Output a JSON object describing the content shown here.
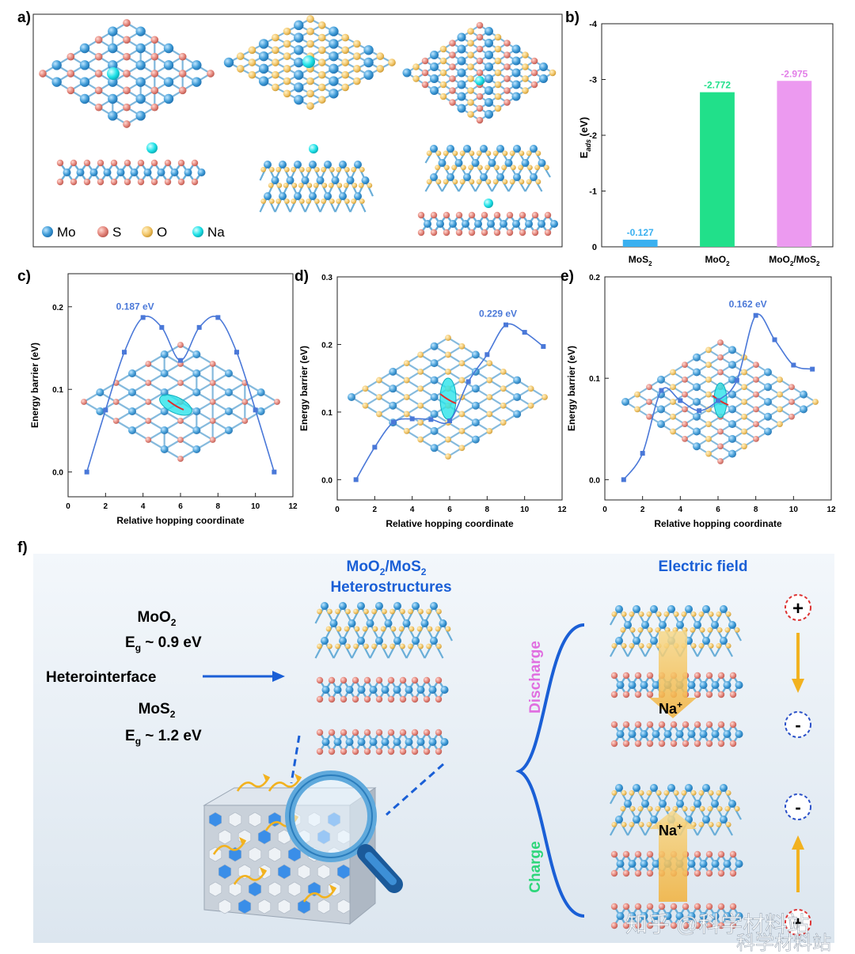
{
  "panels": {
    "a": {
      "letter": "a)",
      "legend": [
        {
          "label": "Mo",
          "color": "#4aa3d8",
          "icon": "mo-atom-icon"
        },
        {
          "label": "S",
          "color": "#e38a7e",
          "icon": "s-atom-icon"
        },
        {
          "label": "O",
          "color": "#f2c76e",
          "icon": "o-atom-icon"
        },
        {
          "label": "Na",
          "color": "#1fe6ea",
          "icon": "na-atom-icon"
        }
      ]
    },
    "b": {
      "letter": "b)"
    },
    "c": {
      "letter": "c)"
    },
    "d": {
      "letter": "d)"
    },
    "e": {
      "letter": "e)"
    },
    "f": {
      "letter": "f)",
      "moo2": "MoO",
      "moo2_sub": "2",
      "eg1_text": "E",
      "eg1_sub": "g",
      "eg1_value": " ~ 0.9 eV",
      "hetero": "Heterointerface",
      "mos2": "MoS",
      "mos2_sub": "2",
      "eg2_text": "E",
      "eg2_sub": "g",
      "eg2_value": " ~ 1.2 eV",
      "hs_title1_a": "MoO",
      "hs_title1_b": "2",
      "hs_title1_c": "/MoS",
      "hs_title1_d": "2",
      "hs_title2": "Heterostructures",
      "field_title": "Electric field",
      "discharge": "Discharge",
      "charge": "Charge",
      "na_label": "Na",
      "na_sup": "+",
      "plus": "+",
      "minus": "-",
      "watermark1": "知乎 @科学材料站",
      "watermark2": "科学材料站",
      "colors": {
        "blue": "#1a5fd6",
        "pink": "#e06ee0",
        "green": "#2ed67a",
        "arrow": "#f2b21f"
      }
    }
  },
  "chart_data": [
    {
      "id": "b",
      "type": "bar",
      "categories": [
        "MoS2",
        "MoO2",
        "MoO2/MoS2"
      ],
      "category_labels": [
        {
          "main": "MoS",
          "sub": "2",
          "tail": "",
          "sub2": ""
        },
        {
          "main": "MoO",
          "sub": "2",
          "tail": "",
          "sub2": ""
        },
        {
          "main": "MoO",
          "sub": "2",
          "tail": "/MoS",
          "sub2": "2"
        }
      ],
      "values": [
        -0.127,
        -2.772,
        -2.975
      ],
      "data_labels": [
        "-0.127",
        "-2.772",
        "-2.975"
      ],
      "colors": [
        "#3ab0f0",
        "#21e08a",
        "#ec9af0"
      ],
      "label_colors": [
        "#3ab0f0",
        "#21e08a",
        "#e27ee8"
      ],
      "ylabel_main": "E",
      "ylabel_sub": "ads",
      "ylabel_tail": " (eV)",
      "ylim": [
        0,
        -4
      ],
      "yticks": [
        0,
        -1,
        -2,
        -3,
        -4
      ],
      "ytick_labels": [
        "0",
        "-1",
        "-2",
        "-3",
        "-4"
      ],
      "y_inverted": true
    },
    {
      "id": "c",
      "type": "line",
      "x": [
        1,
        2,
        3,
        4,
        5,
        6,
        7,
        8,
        9,
        10,
        11
      ],
      "y": [
        0.0,
        0.075,
        0.145,
        0.187,
        0.175,
        0.135,
        0.175,
        0.187,
        0.145,
        0.075,
        0.0
      ],
      "annotation": "0.187 eV",
      "xlabel": "Relative hopping coordinate",
      "ylabel": "Energy barrier (eV)",
      "xlim": [
        0,
        12
      ],
      "ylim": [
        -0.03,
        0.24
      ],
      "xticks": [
        0,
        2,
        4,
        6,
        8,
        10,
        12
      ],
      "yticks": [
        0.0,
        0.1,
        0.2
      ],
      "ytick_labels": [
        "0.0",
        "0.1",
        "0.2"
      ],
      "color": "#4a78d8"
    },
    {
      "id": "d",
      "type": "line",
      "x": [
        1,
        2,
        3,
        4,
        5,
        6,
        7,
        8,
        9,
        10,
        11
      ],
      "y": [
        0.0,
        0.048,
        0.085,
        0.09,
        0.089,
        0.087,
        0.145,
        0.185,
        0.229,
        0.218,
        0.197
      ],
      "annotation": "0.229 eV",
      "xlabel": "Relative hopping coordinate",
      "ylabel": "Energy barrier (eV)",
      "xlim": [
        0,
        12
      ],
      "ylim": [
        -0.03,
        0.3
      ],
      "xticks": [
        0,
        2,
        4,
        6,
        8,
        10,
        12
      ],
      "yticks": [
        0.0,
        0.1,
        0.2,
        0.3
      ],
      "ytick_labels": [
        "0.0",
        "0.1",
        "0.2",
        "0.3"
      ],
      "color": "#4a78d8"
    },
    {
      "id": "e",
      "type": "line",
      "x": [
        1,
        2,
        3,
        4,
        5,
        6,
        7,
        8,
        9,
        10,
        11
      ],
      "y": [
        0.0,
        0.026,
        0.088,
        0.078,
        0.068,
        0.078,
        0.098,
        0.162,
        0.138,
        0.113,
        0.109
      ],
      "annotation": "0.162 eV",
      "xlabel": "Relative hopping coordinate",
      "ylabel": "Energy barrier (eV)",
      "xlim": [
        0,
        12
      ],
      "ylim": [
        -0.02,
        0.2
      ],
      "xticks": [
        0,
        2,
        4,
        6,
        8,
        10,
        12
      ],
      "yticks": [
        0.0,
        0.1,
        0.2
      ],
      "ytick_labels": [
        "0.0",
        "0.1",
        "0.2"
      ],
      "color": "#4a78d8"
    }
  ]
}
